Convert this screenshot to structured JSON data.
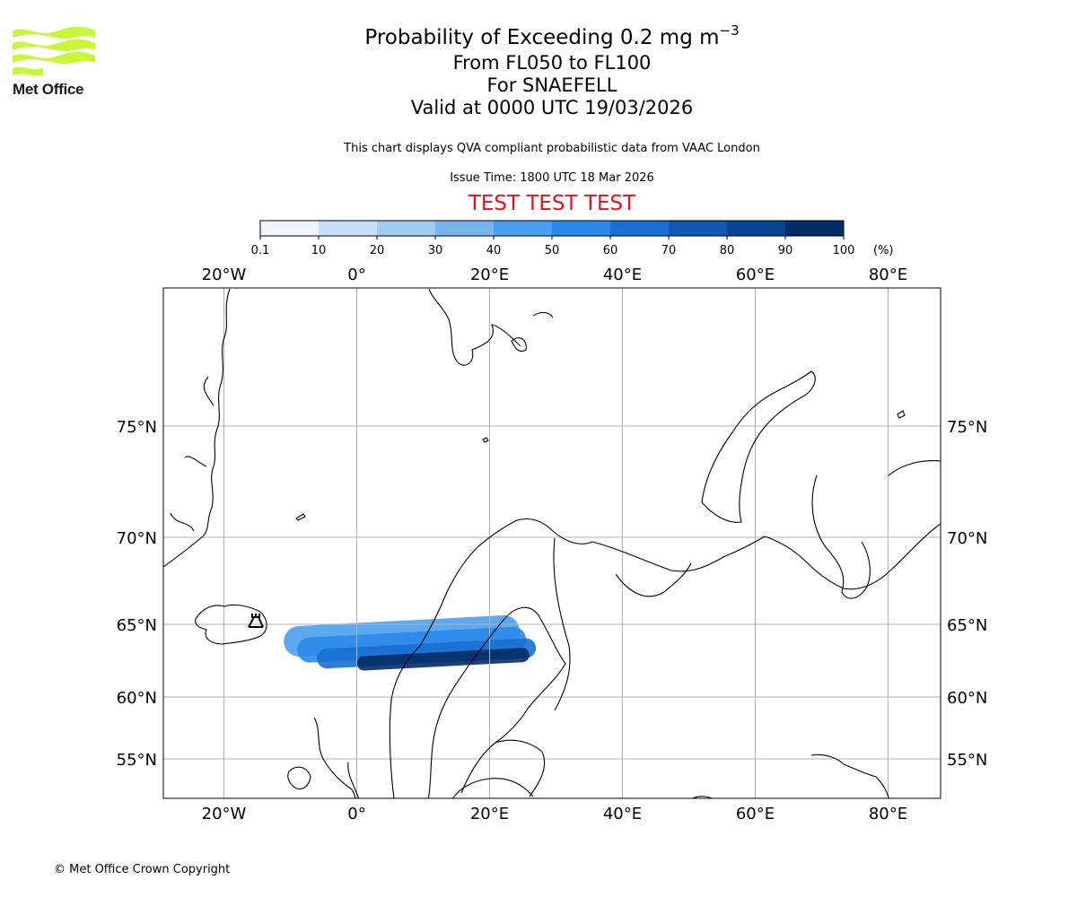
{
  "logo": {
    "brand": "Met Office",
    "wave_color": "#c8f73a"
  },
  "title": {
    "main": "Probability of Exceeding 0.2 mg m",
    "main_superscript": "−3",
    "levels": "From FL050 to FL100",
    "volcano": "For SNAEFELL",
    "valid": "Valid at 0000 UTC 19/03/2026"
  },
  "subtitle": "This chart displays QVA compliant probabilistic data from VAAC London",
  "issue_time": "Issue Time: 1800 UTC 18 Mar 2026",
  "test_banner": {
    "text": "TEST TEST TEST",
    "color": "#e8101a"
  },
  "colorbar": {
    "ticks": [
      "0.1",
      "10",
      "20",
      "30",
      "40",
      "50",
      "60",
      "70",
      "80",
      "90",
      "100"
    ],
    "unit": "(%)",
    "colors": [
      "#eef5fd",
      "#c8e0f7",
      "#a2cbf2",
      "#78b5ee",
      "#4aa0ef",
      "#2a88ea",
      "#1a6fd2",
      "#0f58b4",
      "#074592",
      "#032d66"
    ]
  },
  "map": {
    "lon_labels": [
      "20°W",
      "0°",
      "20°E",
      "40°E",
      "60°E",
      "80°E"
    ],
    "lon_values": [
      -20,
      0,
      20,
      40,
      60,
      80
    ],
    "lat_labels": [
      "75°N",
      "70°N",
      "65°N",
      "60°N",
      "55°N"
    ],
    "lat_values": [
      75,
      70,
      65,
      60,
      55
    ],
    "volcano_marker": "volcano-symbol",
    "plume": [
      {
        "lon": [
          -11,
          24.5
        ],
        "lat": 64.2,
        "prob": 0.4
      },
      {
        "lon": [
          -9,
          25.5
        ],
        "lat": 63.6,
        "prob": 0.5
      },
      {
        "lon": [
          -6,
          27
        ],
        "lat": 63.0,
        "prob": 0.6
      },
      {
        "lon": [
          0,
          26
        ],
        "lat": 62.6,
        "prob": 0.95
      }
    ]
  },
  "copyright": "© Met Office Crown Copyright"
}
